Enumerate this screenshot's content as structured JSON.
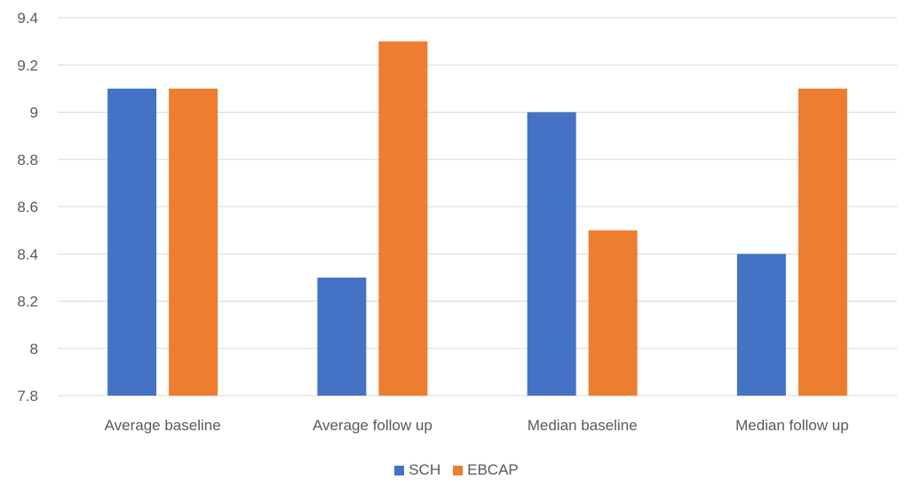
{
  "chart_data": {
    "type": "bar",
    "title": "",
    "xlabel": "",
    "ylabel": "",
    "categories": [
      "Average baseline",
      "Average follow up",
      "Median baseline",
      "Median follow up"
    ],
    "series": [
      {
        "name": "SCH",
        "color": "#4472C4",
        "values": [
          9.1,
          8.3,
          9.0,
          8.4
        ]
      },
      {
        "name": "EBCAP",
        "color": "#ED7D31",
        "values": [
          9.1,
          9.3,
          8.5,
          9.1
        ]
      }
    ],
    "ylim": [
      7.8,
      9.4
    ],
    "yticks": [
      "7.8",
      "8",
      "8.2",
      "8.4",
      "8.6",
      "8.8",
      "9",
      "9.2",
      "9.4"
    ],
    "grid": true,
    "legend_position": "bottom"
  }
}
